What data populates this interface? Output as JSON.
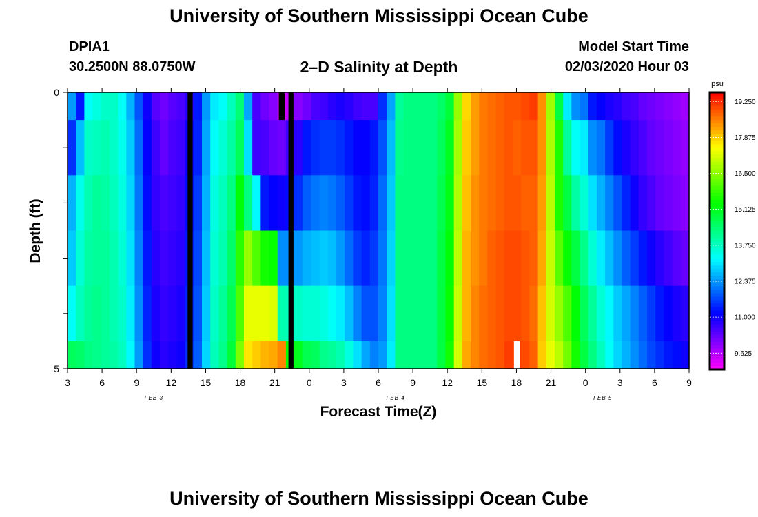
{
  "header": {
    "title": "University of Southern Mississippi Ocean Cube",
    "station_id": "DPIA1",
    "coordinates": "30.2500N 88.0750W",
    "plot_title": "2–D Salinity at Depth",
    "model_start_label": "Model Start Time",
    "model_start_value": "02/03/2020 Hour 03"
  },
  "footer": {
    "title": "University of Southern Mississippi Ocean Cube"
  },
  "chart_data": {
    "type": "heatmap",
    "title": "2–D Salinity at Depth",
    "xlabel": "Forecast Time(Z)",
    "ylabel": "Depth (ft)",
    "x_ticks": [
      "3",
      "6",
      "9",
      "12",
      "15",
      "18",
      "21",
      "0",
      "3",
      "6",
      "9",
      "12",
      "15",
      "18",
      "21",
      "0",
      "3",
      "6",
      "9"
    ],
    "date_labels": [
      "FEB 3",
      "FEB 4",
      "FEB 5"
    ],
    "y_ticks": [
      "0",
      "5"
    ],
    "ylim": [
      0,
      5
    ],
    "colorbar": {
      "unit": "psu",
      "ticks": [
        "19.250",
        "17.875",
        "16.500",
        "15.125",
        "13.750",
        "12.375",
        "11.000",
        "9.625"
      ],
      "range": [
        9.0,
        19.6
      ]
    },
    "rows": [
      "0–0.5 ft",
      "0.5–1.5 ft",
      "1.5–2.5 ft",
      "2.5–3.5 ft",
      "3.5–4.5 ft",
      "4.5–5 ft"
    ],
    "values": [
      [
        12.4,
        11.3,
        13.3,
        13.5,
        13.7,
        13.7,
        13.3,
        12.6,
        11.8,
        11.0,
        10.4,
        10.2,
        10.4,
        10.5,
        10.8,
        11.3,
        12.4,
        13.1,
        13.3,
        13.8,
        14.4,
        12.5,
        10.5,
        10.2,
        10.0,
        9.3,
        9.5,
        10.0,
        10.2,
        10.5,
        10.6,
        10.8,
        10.9,
        10.8,
        10.6,
        10.5,
        10.5,
        11.5,
        12.5,
        14.1,
        14.3,
        14.3,
        14.3,
        14.3,
        14.5,
        14.9,
        16.6,
        17.8,
        18.3,
        18.6,
        18.7,
        18.8,
        18.9,
        18.9,
        19.0,
        19.1,
        18.4,
        16.7,
        14.8,
        13.1,
        12.3,
        12.1,
        11.3,
        11.1,
        10.9,
        10.8,
        10.6,
        10.5,
        10.3,
        10.2,
        10.1,
        10.0,
        9.9,
        9.8
      ],
      [
        11.5,
        12.7,
        13.7,
        13.8,
        13.9,
        13.7,
        13.4,
        12.8,
        12.0,
        11.1,
        10.6,
        10.3,
        10.5,
        10.6,
        11.0,
        11.4,
        12.5,
        13.3,
        13.6,
        14.0,
        14.6,
        13.0,
        10.6,
        10.5,
        10.3,
        10.2,
        10.6,
        10.8,
        11.3,
        11.5,
        11.6,
        11.6,
        11.5,
        11.3,
        11.1,
        11.1,
        11.3,
        11.8,
        12.7,
        14.2,
        14.3,
        14.3,
        14.3,
        14.3,
        14.6,
        15.1,
        16.7,
        17.9,
        18.3,
        18.6,
        18.7,
        18.8,
        18.9,
        18.8,
        18.9,
        18.9,
        18.4,
        16.8,
        15.6,
        14.1,
        13.3,
        13.1,
        12.3,
        12.1,
        11.6,
        11.2,
        10.9,
        10.7,
        10.5,
        10.3,
        10.2,
        10.1,
        10.0,
        9.9
      ],
      [
        12.6,
        13.4,
        13.9,
        14.1,
        14.0,
        13.8,
        13.5,
        12.9,
        12.1,
        11.2,
        10.7,
        10.5,
        10.6,
        10.7,
        11.2,
        11.6,
        12.6,
        13.5,
        13.8,
        14.3,
        15.3,
        14.3,
        13.2,
        11.3,
        11.1,
        11.0,
        11.2,
        11.5,
        11.9,
        12.1,
        12.2,
        12.1,
        11.9,
        11.6,
        11.3,
        11.2,
        11.4,
        12.0,
        12.8,
        14.3,
        14.3,
        14.3,
        14.3,
        14.3,
        14.7,
        15.2,
        16.8,
        18.0,
        18.4,
        18.6,
        18.7,
        18.8,
        18.9,
        18.9,
        18.8,
        18.8,
        18.3,
        16.9,
        15.6,
        14.8,
        14.0,
        13.6,
        13.0,
        12.6,
        12.2,
        11.8,
        11.4,
        11.0,
        10.7,
        10.5,
        10.3,
        10.2,
        10.1,
        10.0
      ],
      [
        12.8,
        13.6,
        14.0,
        14.1,
        14.1,
        13.9,
        13.6,
        13.0,
        12.2,
        11.3,
        10.8,
        10.6,
        10.7,
        10.8,
        11.3,
        11.7,
        12.7,
        13.6,
        13.9,
        14.5,
        15.7,
        16.6,
        16.0,
        15.5,
        15.4,
        12.3,
        12.3,
        12.4,
        12.6,
        12.7,
        12.8,
        12.7,
        12.4,
        12.0,
        11.6,
        11.4,
        11.6,
        12.1,
        12.9,
        14.3,
        14.3,
        14.3,
        14.3,
        14.3,
        14.8,
        15.3,
        16.9,
        18.1,
        18.4,
        18.6,
        18.8,
        18.9,
        19.0,
        19.0,
        18.9,
        18.8,
        18.2,
        17.0,
        16.1,
        15.4,
        14.8,
        14.2,
        13.6,
        13.1,
        12.7,
        12.3,
        11.9,
        11.6,
        11.3,
        11.0,
        10.8,
        10.6,
        10.4,
        10.3
      ],
      [
        13.3,
        13.8,
        14.1,
        14.2,
        14.1,
        13.9,
        13.7,
        13.1,
        12.3,
        11.4,
        10.9,
        10.7,
        10.8,
        10.9,
        11.4,
        11.8,
        12.8,
        13.7,
        14.1,
        14.7,
        16.0,
        17.3,
        17.3,
        17.3,
        17.2,
        13.9,
        13.8,
        13.7,
        13.6,
        13.6,
        13.5,
        13.3,
        13.1,
        12.7,
        12.2,
        11.8,
        11.8,
        12.2,
        13.0,
        14.3,
        14.3,
        14.3,
        14.3,
        14.3,
        14.8,
        15.4,
        17.0,
        18.1,
        18.5,
        18.7,
        18.8,
        18.9,
        19.0,
        19.0,
        18.9,
        18.7,
        18.0,
        17.1,
        16.6,
        16.0,
        15.3,
        14.6,
        14.1,
        13.6,
        13.2,
        12.8,
        12.5,
        12.2,
        11.9,
        11.6,
        11.3,
        11.1,
        10.9,
        10.8
      ],
      [
        14.6,
        14.5,
        14.3,
        14.2,
        14.1,
        14.0,
        13.8,
        13.2,
        12.4,
        11.5,
        11.0,
        10.8,
        10.9,
        11.0,
        11.5,
        11.9,
        12.9,
        13.8,
        14.2,
        14.9,
        16.4,
        17.7,
        17.9,
        18.1,
        18.2,
        18.5,
        15.3,
        15.1,
        14.7,
        14.6,
        14.2,
        14.1,
        13.9,
        13.5,
        13.0,
        12.5,
        12.2,
        12.4,
        13.1,
        14.3,
        14.3,
        14.3,
        14.3,
        14.3,
        14.8,
        15.5,
        17.1,
        18.2,
        18.5,
        18.7,
        18.8,
        18.9,
        19.1,
        19.1,
        19.0,
        18.8,
        17.9,
        17.3,
        16.9,
        16.3,
        15.5,
        14.8,
        14.3,
        13.8,
        13.3,
        12.9,
        12.6,
        12.3,
        12.0,
        11.7,
        11.5,
        11.3,
        11.2,
        11.0
      ]
    ],
    "missing_cells": [
      {
        "row": 0,
        "col": 25,
        "color": "#000000"
      },
      {
        "row": 5,
        "col": 53,
        "color": "#ffffff"
      }
    ],
    "vertical_lines": [
      {
        "col": 14,
        "color": "#000000"
      },
      {
        "col": 26,
        "color": "#000000"
      }
    ],
    "grid": false
  }
}
